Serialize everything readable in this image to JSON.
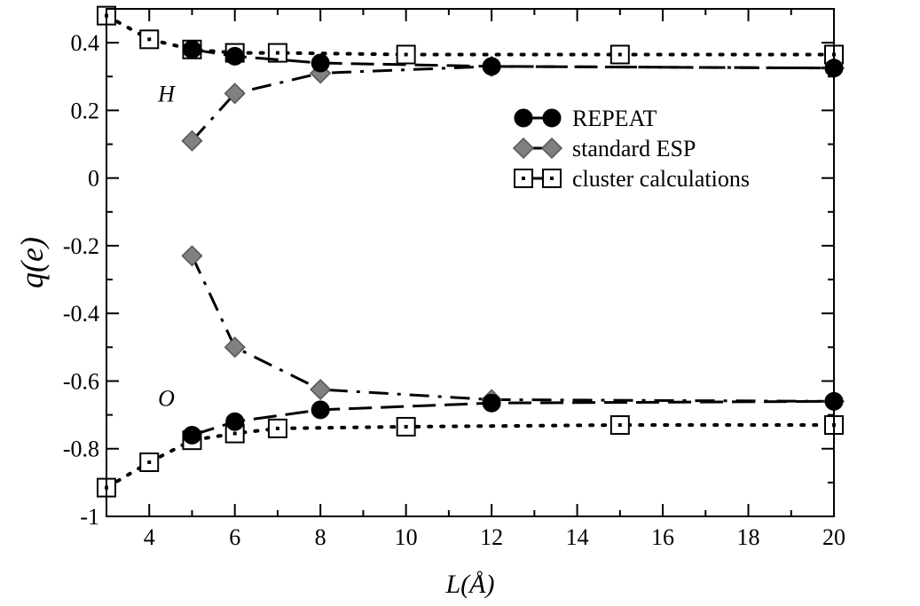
{
  "chart_data": {
    "type": "line",
    "xlabel": "L(Å)",
    "ylabel": "q(e)",
    "xlim": [
      3,
      20
    ],
    "ylim": [
      -1,
      0.5
    ],
    "xticks": [
      4,
      6,
      8,
      10,
      12,
      14,
      16,
      18,
      20
    ],
    "xtick_labels": [
      "4",
      "6",
      "8",
      "10",
      "12",
      "14",
      "16",
      "18",
      "20"
    ],
    "yticks": [
      -1,
      -0.8,
      -0.6,
      -0.4,
      -0.2,
      0,
      0.2,
      0.4
    ],
    "ytick_labels": [
      "-1",
      "-0.8",
      "-0.6",
      "-0.4",
      "-0.2",
      "0",
      "0.2",
      "0.4"
    ],
    "legend_position": "top-right",
    "annotations": [
      {
        "text": "H",
        "x": 4.4,
        "y": 0.25
      },
      {
        "text": "O",
        "x": 4.4,
        "y": -0.65
      }
    ],
    "series": [
      {
        "name": "REPEAT",
        "marker": "circle",
        "line": "long-dash",
        "color": "#000000",
        "groups": [
          {
            "x": [
              5,
              6,
              8,
              12,
              20
            ],
            "y": [
              0.38,
              0.36,
              0.34,
              0.33,
              0.325
            ]
          },
          {
            "x": [
              5,
              6,
              8,
              12,
              20
            ],
            "y": [
              -0.76,
              -0.72,
              -0.685,
              -0.665,
              -0.66
            ]
          }
        ]
      },
      {
        "name": "standard ESP",
        "marker": "diamond",
        "line": "dash-dot",
        "color": "#808080",
        "groups": [
          {
            "x": [
              5,
              6,
              8,
              12,
              20
            ],
            "y": [
              0.11,
              0.25,
              0.31,
              0.33,
              0.325
            ]
          },
          {
            "x": [
              5,
              6,
              8,
              12,
              20
            ],
            "y": [
              -0.23,
              -0.5,
              -0.625,
              -0.655,
              -0.66
            ]
          }
        ]
      },
      {
        "name": "cluster calculations",
        "marker": "square",
        "line": "dotted",
        "color": "#000000",
        "groups": [
          {
            "x": [
              3,
              4,
              5,
              6,
              7,
              10,
              15,
              20
            ],
            "y": [
              0.48,
              0.41,
              0.38,
              0.37,
              0.37,
              0.365,
              0.365,
              0.365
            ]
          },
          {
            "x": [
              3,
              4,
              5,
              6,
              7,
              10,
              15,
              20
            ],
            "y": [
              -0.915,
              -0.84,
              -0.775,
              -0.755,
              -0.74,
              -0.735,
              -0.73,
              -0.73
            ]
          }
        ]
      }
    ]
  }
}
